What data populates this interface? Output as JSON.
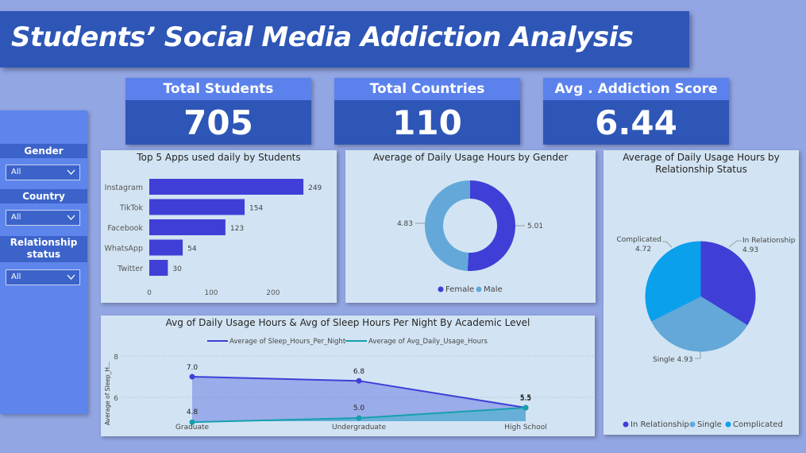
{
  "title": "Students’ Social Media Addiction Analysis",
  "kpis": [
    {
      "label": "Total Students",
      "value": "705"
    },
    {
      "label": "Total Countries",
      "value": "110"
    },
    {
      "label": "Avg . Addiction Score",
      "value": "6.44"
    }
  ],
  "slicers": [
    {
      "label": "Gender",
      "value": "All"
    },
    {
      "label": "Country",
      "value": "All"
    },
    {
      "label": "Relationship status",
      "value": "All"
    }
  ],
  "colors": {
    "banner": "#2e56b7",
    "kpi_head": "#5b82ec",
    "card_bg": "#d2e4f3",
    "series_dark": "#3f3fd7",
    "series_mid": "#63a8d9",
    "series_teal": "#16a0ad",
    "series_bright": "#0ba0ec"
  },
  "chart_data": [
    {
      "type": "bar",
      "title": "Top 5 Apps used daily by Students",
      "categories": [
        "Instagram",
        "TikTok",
        "Facebook",
        "WhatsApp",
        "Twitter"
      ],
      "values": [
        249,
        154,
        123,
        54,
        30
      ],
      "data_labels": [
        "249",
        "154",
        "123",
        "54",
        "30"
      ],
      "xticks": [
        "0",
        "100",
        "200"
      ],
      "xlim": [
        0,
        260
      ],
      "orientation": "horizontal"
    },
    {
      "type": "pie",
      "subtype": "donut",
      "title": "Average of Daily Usage Hours by Gender",
      "categories": [
        "Female",
        "Male"
      ],
      "values": [
        5.01,
        4.83
      ],
      "data_labels": [
        "5.01",
        "4.83"
      ],
      "legend": [
        "Female",
        "Male"
      ],
      "legend_position": "bottom"
    },
    {
      "type": "pie",
      "title": "Average of Daily Usage Hours by Relationship Status",
      "categories": [
        "In Relationship",
        "Single",
        "Complicated"
      ],
      "values": [
        4.93,
        4.93,
        4.72
      ],
      "data_labels": [
        "In Relationship\n4.93",
        "Single 4.93",
        "Complicated\n4.72"
      ],
      "legend": [
        "In Relationship",
        "Single",
        "Complicated"
      ],
      "legend_position": "bottom"
    },
    {
      "type": "area",
      "title": "Avg of Daily Usage Hours & Avg of Sleep Hours Per Night By Academic Level",
      "categories": [
        "Graduate",
        "Undergraduate",
        "High School"
      ],
      "series": [
        {
          "name": "Average of Sleep_Hours_Per_Night",
          "values": [
            7.0,
            6.8,
            5.5
          ],
          "labels": [
            "7.0",
            "6.8",
            "5.5"
          ]
        },
        {
          "name": "Average of Avg_Daily_Usage_Hours",
          "values": [
            4.8,
            5.0,
            5.5
          ],
          "labels": [
            "4.8",
            "5.0",
            "5.5"
          ]
        }
      ],
      "ylabel": "Average of Sleep_H...",
      "yticks": [
        "6",
        "8"
      ],
      "legend_position": "top"
    }
  ]
}
